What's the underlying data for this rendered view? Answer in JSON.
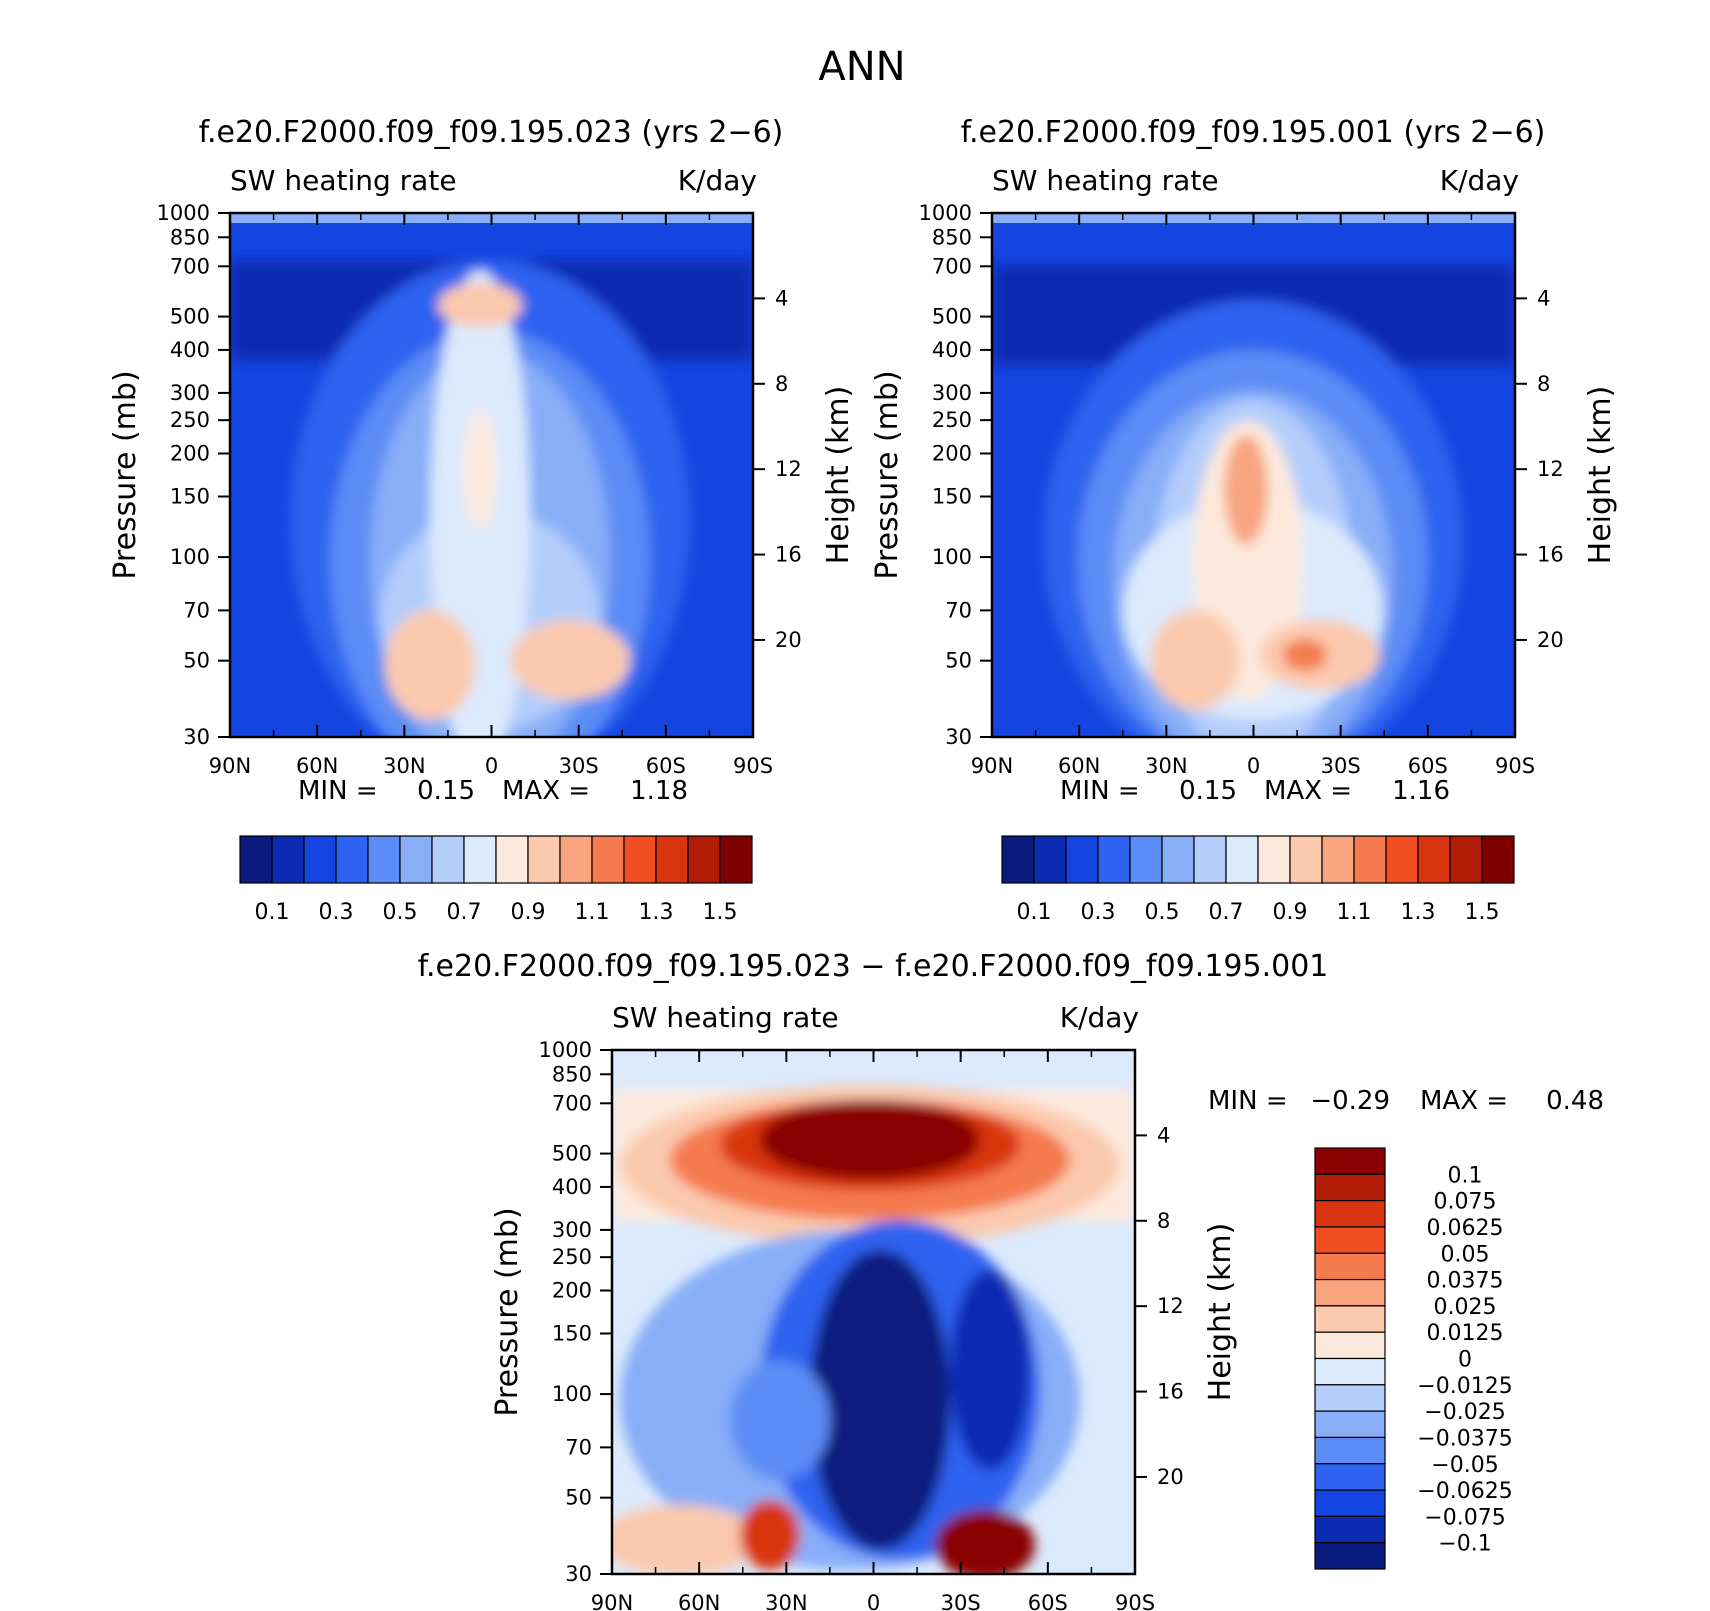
{
  "title": "ANN",
  "panels": [
    {
      "title": "f.e20.F2000.f09_f09.195.023 (yrs 2−6)",
      "left_label": "SW heating rate",
      "right_label": "K/day",
      "min_label": "MIN =",
      "min_value": "0.15",
      "max_label": "MAX =",
      "max_value": "1.18"
    },
    {
      "title": "f.e20.F2000.f09_f09.195.001 (yrs 2−6)",
      "left_label": "SW heating rate",
      "right_label": "K/day",
      "min_label": "MIN =",
      "min_value": "0.15",
      "max_label": "MAX =",
      "max_value": "1.16"
    },
    {
      "title": "f.e20.F2000.f09_f09.195.023 − f.e20.F2000.f09_f09.195.001",
      "left_label": "SW heating rate",
      "right_label": "K/day",
      "min_label": "MIN =",
      "min_value": "−0.29",
      "max_label": "MAX =",
      "max_value": "0.48"
    }
  ],
  "axes": {
    "ylabel": "Pressure (mb)",
    "ylabel_right": "Height (km)",
    "x_ticks": [
      "90N",
      "60N",
      "30N",
      "0",
      "30S",
      "60S",
      "90S"
    ],
    "y_ticks": [
      "30",
      "50",
      "70",
      "100",
      "150",
      "200",
      "250",
      "300",
      "400",
      "500",
      "700",
      "850",
      "1000"
    ],
    "height_ticks": [
      "20",
      "16",
      "12",
      "8",
      "4"
    ]
  },
  "colorbar_abs": {
    "colors": [
      "#0a1a7e",
      "#0a2bb2",
      "#1545e0",
      "#2e62f0",
      "#5c8cf5",
      "#88aef8",
      "#b4cdfb",
      "#dceafd",
      "#fde9dc",
      "#fbc9ad",
      "#f8a47e",
      "#f57a4e",
      "#f04e22",
      "#d93410",
      "#b01c08",
      "#800000"
    ],
    "labels": [
      "0.1",
      "0.3",
      "0.5",
      "0.7",
      "0.9",
      "1.1",
      "1.3",
      "1.5"
    ]
  },
  "colorbar_diff": {
    "colors": [
      "#8b0000",
      "#b01c08",
      "#d93410",
      "#f04e22",
      "#f57a4e",
      "#f8a47e",
      "#fbc9ad",
      "#fde9dc",
      "#dceafd",
      "#b4cdfb",
      "#88aef8",
      "#5c8cf5",
      "#2e62f0",
      "#1545e0",
      "#0a2bb2",
      "#0a1a7e"
    ],
    "labels": [
      "0.1",
      "0.075",
      "0.0625",
      "0.05",
      "0.0375",
      "0.025",
      "0.0125",
      "0",
      "−0.0125",
      "−0.025",
      "−0.0375",
      "−0.05",
      "−0.0625",
      "−0.075",
      "−0.1"
    ]
  },
  "chart_data": [
    {
      "type": "heatmap",
      "title": "f.e20.F2000.f09_f09.195.023 (yrs 2−6)",
      "xlabel": "",
      "ylabel": "Pressure (mb)",
      "xlim": [
        90,
        -90
      ],
      "ylim": [
        1000,
        30
      ],
      "y_scale": "log",
      "min": 0.15,
      "max": 1.18,
      "units": "K/day"
    },
    {
      "type": "heatmap",
      "title": "f.e20.F2000.f09_f09.195.001 (yrs 2−6)",
      "xlabel": "",
      "ylabel": "Pressure (mb)",
      "xlim": [
        90,
        -90
      ],
      "ylim": [
        1000,
        30
      ],
      "y_scale": "log",
      "min": 0.15,
      "max": 1.16,
      "units": "K/day"
    },
    {
      "type": "heatmap",
      "title": "f.e20.F2000.f09_f09.195.023 − f.e20.F2000.f09_f09.195.001",
      "xlabel": "",
      "ylabel": "Pressure (mb)",
      "xlim": [
        90,
        -90
      ],
      "ylim": [
        1000,
        30
      ],
      "y_scale": "log",
      "min": -0.29,
      "max": 0.48,
      "units": "K/day"
    }
  ]
}
